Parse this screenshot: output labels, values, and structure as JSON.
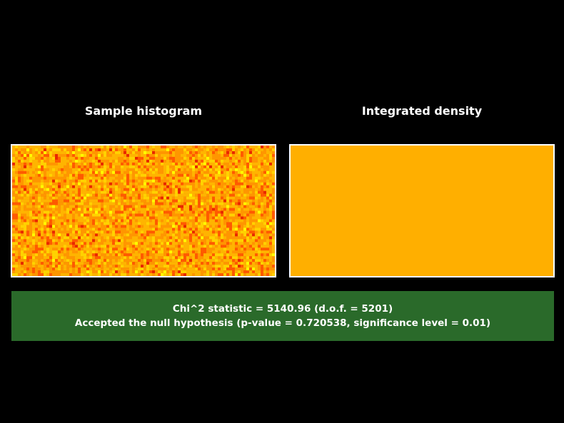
{
  "chart_data": [
    {
      "type": "heatmap",
      "title": "Sample histogram",
      "grid": false,
      "colormap": [
        "#e82800",
        "#ff5a00",
        "#ff9600",
        "#ffb400",
        "#ffd200",
        "#ffff00"
      ],
      "distribution": "uniform random counts around the expected value per bin"
    },
    {
      "type": "heatmap",
      "title": "Integrated density",
      "grid": false,
      "fill_color": "#ffaf00"
    }
  ],
  "result": {
    "line1": "Chi^2 statistic = 5140.96 (d.o.f. = 5201)",
    "line2": "Accepted the null hypothesis (p-value = 0.720538, significance level = 0.01)",
    "status_color": "#2a6a2a"
  }
}
